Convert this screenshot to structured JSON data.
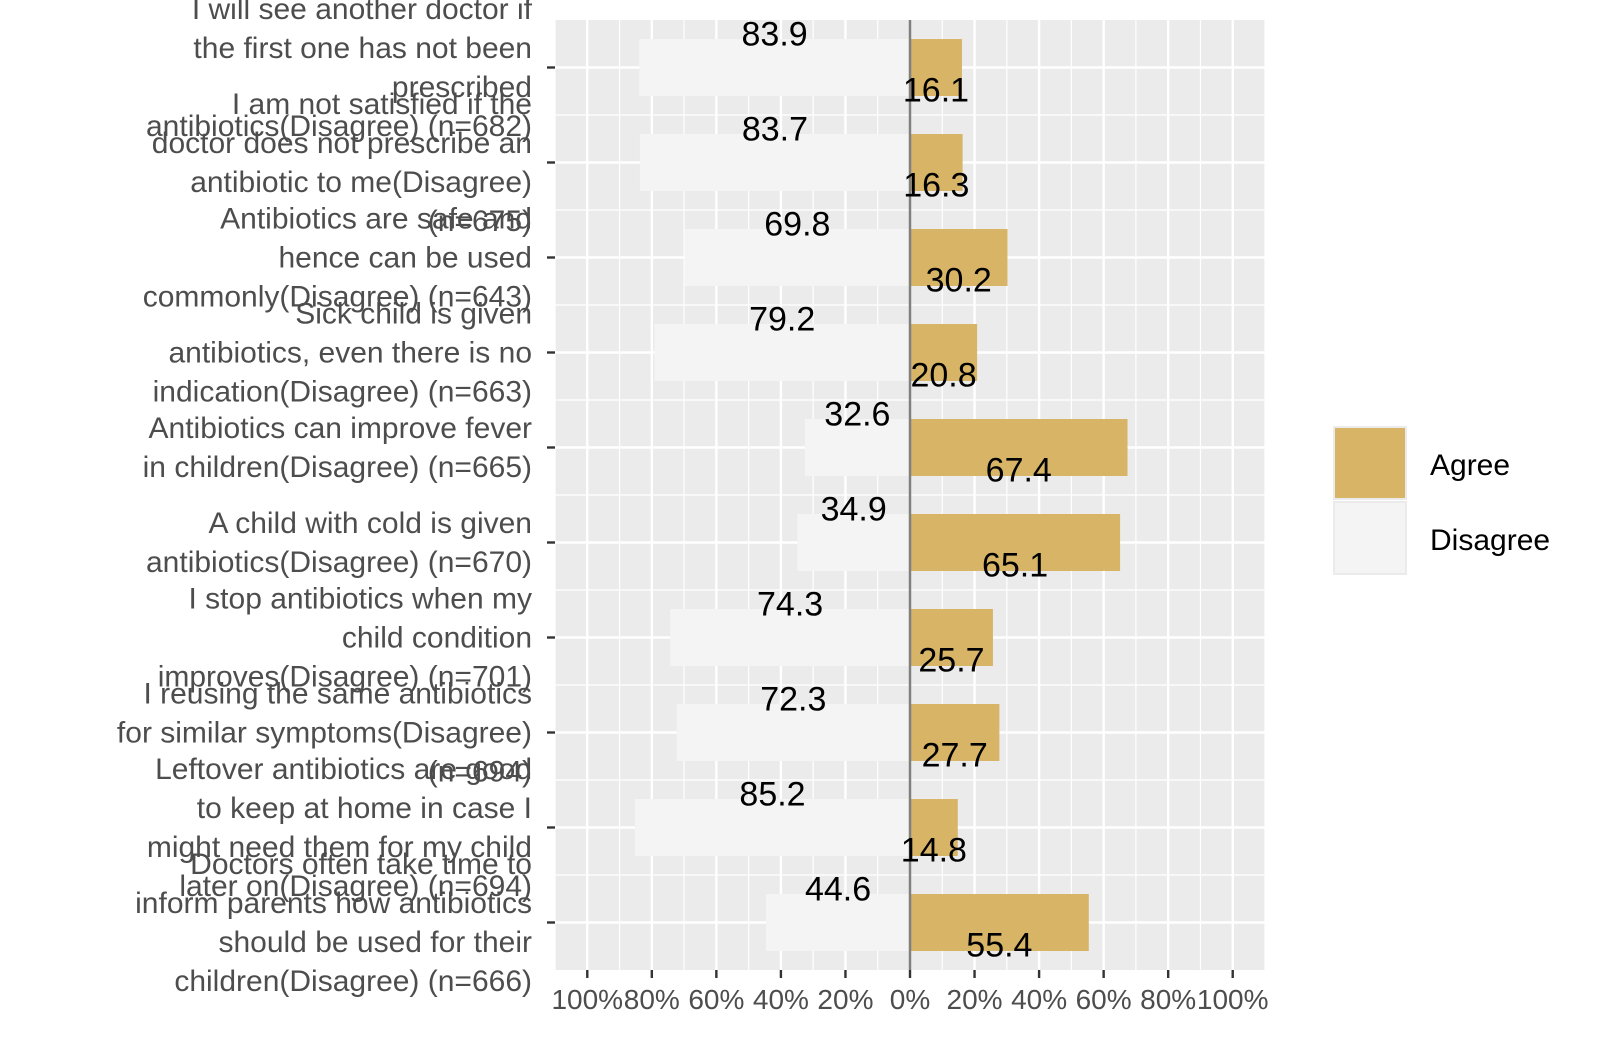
{
  "chart_data": {
    "type": "bar",
    "orientation": "horizontal-diverging",
    "categories": [
      "I will see another doctor if the first one has not been prescribed antibiotics(Disagree) (n=682)",
      "I am not satisfied if the doctor does not prescribe an antibiotic to me(Disagree) (n=675)",
      "Antibiotics are safe and hence can be used commonly(Disagree) (n=643)",
      "Sick child is given antibiotics, even there is no indication(Disagree) (n=663)",
      "Antibiotics can improve fever in children(Disagree) (n=665)",
      "A child with cold is given antibiotics(Disagree) (n=670)",
      "I stop antibiotics when my child condition improves(Disagree) (n=701)",
      "I reusing the same antibiotics for similar symptoms(Disagree) (n=694)",
      "Leftover antibiotics are good to keep at home in case I might need them for my child later on(Disagree) (n=694)",
      "Doctors often take time to inform parents how antibiotics should be used for their children(Disagree) (n=666)"
    ],
    "category_lines": [
      [
        "I will see another doctor if",
        "the first one has not been",
        "prescribed",
        "antibiotics(Disagree) (n=682)"
      ],
      [
        "I am not satisfied if the",
        "doctor does not prescribe an",
        "antibiotic to me(Disagree)",
        "(n=675)"
      ],
      [
        "Antibiotics are safe and",
        "hence can be used",
        "commonly(Disagree) (n=643)"
      ],
      [
        "Sick child is given",
        "antibiotics, even there is no",
        "indication(Disagree) (n=663)"
      ],
      [
        "Antibiotics can improve fever",
        "in children(Disagree) (n=665)"
      ],
      [
        "A child with cold is given",
        "antibiotics(Disagree) (n=670)"
      ],
      [
        "I stop antibiotics when my",
        "child condition",
        "improves(Disagree) (n=701)"
      ],
      [
        "I reusing the same antibiotics",
        "for similar symptoms(Disagree)",
        "(n=694)"
      ],
      [
        "Leftover antibiotics are good",
        "to keep at home in case I",
        "might need them for my child",
        "later on(Disagree) (n=694)"
      ],
      [
        "Doctors often take time to",
        "inform parents how antibiotics",
        "should be used for their",
        "children(Disagree) (n=666)"
      ]
    ],
    "series": [
      {
        "name": "Agree",
        "color": "#d7b466",
        "values": [
          16.1,
          16.3,
          30.2,
          20.8,
          67.4,
          65.1,
          25.7,
          27.7,
          14.8,
          55.4
        ]
      },
      {
        "name": "Disagree",
        "color": "#f4f4f4",
        "values": [
          83.9,
          83.7,
          69.8,
          79.2,
          32.6,
          34.9,
          74.3,
          72.3,
          85.2,
          44.6
        ]
      }
    ],
    "data_labels": {
      "agree": [
        "16.1",
        "16.3",
        "30.2",
        "20.8",
        "67.4",
        "65.1",
        "25.7",
        "27.7",
        "14.8",
        "55.4"
      ],
      "disagree": [
        "83.9",
        "83.7",
        "69.8",
        "79.2",
        "32.6",
        "34.9",
        "74.3",
        "72.3",
        "85.2",
        "44.6"
      ]
    },
    "xlim": [
      -110,
      110
    ],
    "x_ticks": [
      -100,
      -80,
      -60,
      -40,
      -20,
      0,
      20,
      40,
      60,
      80,
      100
    ],
    "x_tick_labels": [
      "100%",
      "80%",
      "60%",
      "40%",
      "20%",
      "0%",
      "20%",
      "40%",
      "60%",
      "80%",
      "100%"
    ],
    "title": "",
    "xlabel": "",
    "ylabel": "",
    "grid": true,
    "panel_background": "#ebebeb",
    "zero_line_color": "#808080",
    "legend_position": "right",
    "legend": [
      "Agree",
      "Disagree"
    ]
  }
}
